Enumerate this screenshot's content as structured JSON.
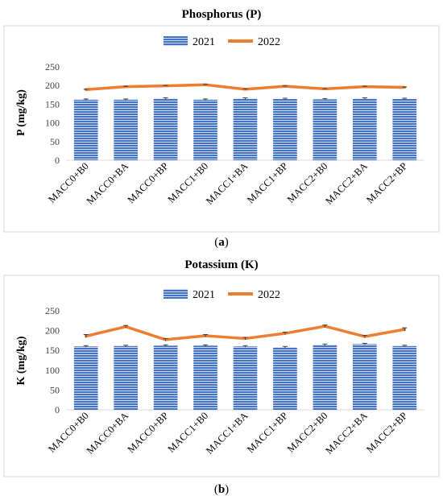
{
  "colors": {
    "bar_2021": "#4472c4",
    "bar_stripe": "#ffffff",
    "line_2022": "#ed7d31",
    "error_bar": "#404040",
    "axis": "#d9d9d9"
  },
  "chart_data": [
    {
      "type": "bar",
      "title": "Phosphorus (P)",
      "panel_label": "a",
      "ylabel": "P (mg/kg)",
      "ylim": [
        0,
        250
      ],
      "yticks": [
        "0",
        "50",
        "100",
        "150",
        "200",
        "250"
      ],
      "grid": false,
      "legend_position": "top-center",
      "categories": [
        "MACC0+B0",
        "MACC0+BA",
        "MACC0+BP",
        "MACC1+B0",
        "MACC1+BA",
        "MACC1+BP",
        "MACC2+B0",
        "MACC2+BA",
        "MACC2+BP"
      ],
      "series": [
        {
          "name": "2021",
          "kind": "bar",
          "values": [
            162,
            162,
            165,
            162,
            165,
            164,
            163,
            165,
            164
          ],
          "errors": [
            2,
            2,
            2,
            2,
            2,
            2,
            2,
            2,
            2
          ]
        },
        {
          "name": "2022",
          "kind": "line",
          "values": [
            189,
            197,
            199,
            202,
            190,
            198,
            191,
            197,
            195
          ],
          "errors": [
            1,
            1,
            1,
            1,
            1,
            1,
            1,
            1,
            1
          ]
        }
      ]
    },
    {
      "type": "bar",
      "title": "Potassium (K)",
      "panel_label": "b",
      "ylabel": "K (mg/kg)",
      "ylim": [
        0,
        250
      ],
      "yticks": [
        "0",
        "50",
        "100",
        "150",
        "200",
        "250"
      ],
      "grid": false,
      "legend_position": "top-center",
      "categories": [
        "MACC0+B0",
        "MACC0+BA",
        "MACC0+BP",
        "MACC1+B0",
        "MACC1+BA",
        "MACC1+BP",
        "MACC2+B0",
        "MACC2+BA",
        "MACC2+BP"
      ],
      "series": [
        {
          "name": "2021",
          "kind": "bar",
          "values": [
            160,
            161,
            162,
            162,
            160,
            158,
            164,
            166,
            161
          ],
          "errors": [
            2,
            2,
            2,
            2,
            2,
            2,
            2,
            2,
            2
          ]
        },
        {
          "name": "2022",
          "kind": "line",
          "values": [
            186,
            210,
            177,
            187,
            180,
            193,
            211,
            185,
            203
          ],
          "errors": [
            4,
            3,
            3,
            3,
            3,
            3,
            3,
            3,
            4
          ]
        }
      ]
    }
  ]
}
